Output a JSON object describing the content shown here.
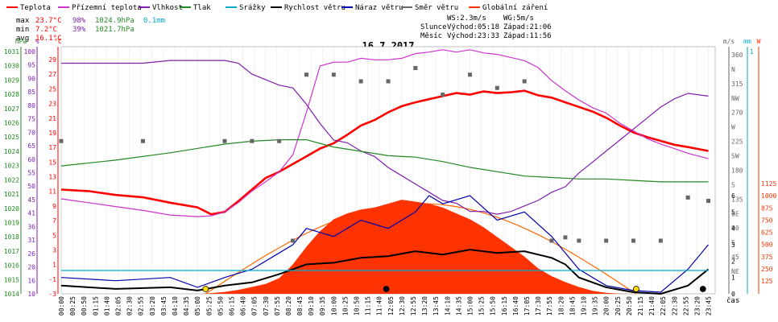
{
  "legend": [
    {
      "label": "Teplota",
      "color": "#ff0000"
    },
    {
      "label": "Přízemní teplota",
      "color": "#cc33cc"
    },
    {
      "label": "Vlhkost",
      "color": "#7f1fae"
    },
    {
      "label": "Tlak",
      "color": "#228822"
    },
    {
      "label": "Srážky",
      "color": "#00aacc"
    },
    {
      "label": "Rychlost větru",
      "color": "#000000"
    },
    {
      "label": "Náraz větru",
      "color": "#0000aa"
    },
    {
      "label": "Směr větru",
      "color": "#666666"
    },
    {
      "label": "Globální záření",
      "color": "#ff3300"
    }
  ],
  "stats": {
    "max": {
      "label": "max",
      "temp": "23.7°C",
      "hum": "98%",
      "press": "1024.9hPa",
      "rain": "0.1mm"
    },
    "min": {
      "label": "min",
      "temp": "7.2°C",
      "hum": "39%",
      "press": "1021.7hPa"
    },
    "avg": {
      "label": "avg",
      "temp": "16.1°C"
    }
  },
  "info": {
    "ws": "WS:2.3m/s",
    "wg": "WG:5m/s",
    "sun_label": "Slunce",
    "sunrise": "Východ:05:18",
    "sunset": "Západ:21:06",
    "moon_label": "Měsíc",
    "moonrise": "Východ:23:33",
    "moonset": "Západ:11:56"
  },
  "chart_data": {
    "type": "line",
    "title": "16.7.2017",
    "x_label": "čas",
    "x_ticks": [
      "00:00",
      "00:25",
      "00:50",
      "01:15",
      "01:40",
      "02:05",
      "02:30",
      "02:55",
      "03:20",
      "03:45",
      "04:10",
      "04:35",
      "05:00",
      "05:25",
      "05:50",
      "06:15",
      "06:40",
      "07:05",
      "07:30",
      "07:55",
      "08:20",
      "08:45",
      "09:10",
      "09:35",
      "10:00",
      "10:25",
      "10:50",
      "11:15",
      "11:40",
      "12:05",
      "12:30",
      "12:55",
      "13:20",
      "13:45",
      "14:10",
      "14:35",
      "15:00",
      "15:25",
      "15:50",
      "16:15",
      "16:40",
      "17:05",
      "17:30",
      "17:55",
      "18:20",
      "18:45",
      "19:10",
      "19:35",
      "20:00",
      "20:25",
      "20:50",
      "21:15",
      "21:40",
      "22:05",
      "22:30",
      "22:55",
      "23:20",
      "23:45"
    ],
    "axes": {
      "hpa": {
        "label": "hPa",
        "ticks": [
          1031,
          1030,
          1029,
          1028,
          1027,
          1026,
          1025,
          1024,
          1023,
          1022,
          1021,
          1020,
          1019,
          1018,
          1017,
          1016,
          1015,
          1014
        ],
        "color": "#228822"
      },
      "pct": {
        "label": "%",
        "ticks": [
          100,
          95,
          90,
          85,
          80,
          75,
          70,
          65,
          60,
          55,
          50,
          45,
          41,
          36,
          31,
          26,
          20,
          16,
          10
        ],
        "color": "#7f1fae"
      },
      "temp": {
        "label": "°C",
        "ticks": [
          29,
          27,
          25,
          23,
          21,
          19,
          17,
          15,
          13,
          11,
          9,
          7,
          5,
          3,
          1,
          -1,
          -3
        ],
        "color": "#ff0000"
      },
      "dir": {
        "label": "m/s",
        "ticks": [
          "360",
          "N",
          "315",
          "NW",
          "270",
          "W",
          "225",
          "SW",
          "180",
          "S",
          "135",
          "SE",
          "90",
          "E",
          "45",
          "NE"
        ],
        "color": "#666666"
      },
      "wind": {
        "ticks": [
          6,
          5,
          4,
          3,
          2,
          1,
          0
        ],
        "color": "#000000"
      },
      "rain": {
        "label": "mm",
        "ticks": [
          "1"
        ],
        "color": "#00aacc"
      },
      "rad": {
        "label": "W",
        "ticks": [
          1125,
          1000,
          875,
          750,
          625,
          500,
          375,
          250,
          125
        ],
        "color": "#ff3300"
      }
    },
    "series": [
      {
        "name": "Teplota",
        "color": "#ff0000",
        "x": [
          0,
          1,
          2,
          3,
          4,
          5,
          5.5,
          6,
          6.5,
          7,
          7.5,
          8,
          8.5,
          9,
          9.5,
          10,
          10.5,
          11,
          11.5,
          12,
          12.5,
          13,
          13.5,
          14,
          14.5,
          15,
          15.5,
          16,
          16.5,
          17,
          17.5,
          18,
          18.5,
          19,
          19.5,
          20,
          20.5,
          21,
          21.5,
          22,
          22.5,
          23,
          23.75
        ],
        "y": [
          10.5,
          10.3,
          9.8,
          9.5,
          8.8,
          8.2,
          7.3,
          7.6,
          9,
          10.5,
          12,
          12.8,
          13.8,
          14.8,
          15.8,
          16.5,
          17.6,
          18.8,
          19.5,
          20.5,
          21.3,
          21.8,
          22.2,
          22.6,
          23,
          22.8,
          23.2,
          23,
          23.1,
          23.3,
          22.7,
          22.4,
          21.8,
          21.2,
          20.6,
          19.8,
          18.8,
          17.9,
          17.3,
          16.8,
          16.3,
          16,
          15.5
        ]
      },
      {
        "name": "Přízemní teplota",
        "color": "#cc33cc",
        "x": [
          0,
          1,
          2,
          3,
          4,
          5,
          5.5,
          6,
          6.5,
          7,
          7.5,
          8,
          8.5,
          9,
          9.5,
          10,
          10.5,
          11,
          11.5,
          12,
          12.5,
          13,
          13.5,
          14,
          14.5,
          15,
          15.5,
          16,
          16.5,
          17,
          17.5,
          18,
          18.5,
          19,
          19.5,
          20,
          20.5,
          21,
          21.5,
          22,
          22.5,
          23,
          23.75
        ],
        "y": [
          9.3,
          8.8,
          8.3,
          7.8,
          7.2,
          7,
          7.1,
          7.6,
          8.8,
          10.3,
          11.5,
          12.8,
          15,
          20.5,
          26.5,
          27,
          27,
          27.5,
          27.3,
          27.3,
          27.5,
          28.1,
          28.3,
          28.6,
          28.3,
          28.6,
          28.2,
          28,
          27.6,
          27.2,
          26.3,
          24.6,
          23.3,
          22.1,
          21.1,
          20.4,
          19.1,
          18.1,
          17.1,
          16.4,
          15.8,
          15.2,
          14.5
        ]
      },
      {
        "name": "Vlhkost",
        "color": "#7f1fae",
        "x": [
          0,
          1,
          2,
          3,
          4,
          5,
          5.5,
          6,
          6.5,
          7,
          7.5,
          8,
          8.5,
          9,
          9.5,
          10,
          10.5,
          11,
          11.5,
          12,
          12.5,
          13,
          13.5,
          14,
          14.5,
          15,
          15.5,
          16,
          16.5,
          17,
          17.5,
          18,
          18.5,
          19,
          19.5,
          20,
          20.5,
          21,
          21.5,
          22,
          22.5,
          23,
          23.75
        ],
        "y": [
          94,
          94,
          94,
          94,
          95,
          95,
          95,
          95,
          94,
          90,
          88,
          86,
          85,
          79,
          72,
          66,
          65,
          62,
          60,
          56,
          53,
          50,
          47,
          44,
          43,
          40,
          40,
          39,
          40,
          42,
          44,
          47,
          49,
          54,
          58,
          62,
          66,
          70,
          74,
          78,
          81,
          83,
          82
        ]
      },
      {
        "name": "Tlak",
        "color": "#228822",
        "x": [
          0,
          2,
          4,
          6,
          7,
          8,
          9,
          10,
          11,
          12,
          13,
          14,
          15,
          16,
          17,
          18,
          19,
          20,
          21,
          22,
          23,
          23.75
        ],
        "y": [
          1022.8,
          1023.2,
          1023.7,
          1024.3,
          1024.5,
          1024.6,
          1024.6,
          1024.1,
          1023.8,
          1023.5,
          1023.4,
          1023.1,
          1022.7,
          1022.4,
          1022.1,
          1022,
          1021.9,
          1021.9,
          1021.8,
          1021.7,
          1021.7,
          1021.7
        ]
      },
      {
        "name": "Globální záření",
        "color": "#ff3300",
        "x": [
          5.2,
          6,
          6.5,
          7,
          7.5,
          8,
          8.5,
          9,
          9.5,
          10,
          10.5,
          11,
          11.5,
          12,
          12.5,
          13,
          13.5,
          14,
          14.5,
          15,
          15.5,
          16,
          16.5,
          17,
          17.5,
          18,
          18.5,
          19,
          19.5,
          20,
          20.5,
          21
        ],
        "y": [
          0,
          20,
          40,
          70,
          100,
          160,
          300,
          480,
          640,
          760,
          820,
          860,
          880,
          920,
          960,
          940,
          920,
          880,
          820,
          760,
          680,
          580,
          480,
          380,
          260,
          180,
          120,
          70,
          30,
          10,
          2,
          0
        ]
      },
      {
        "name": "Rychlost větru",
        "color": "#000000",
        "x": [
          0,
          2,
          4,
          5,
          6,
          7,
          8,
          8.5,
          9,
          10,
          11,
          12,
          13,
          14,
          15,
          16,
          17,
          18,
          18.5,
          19,
          20,
          21,
          22,
          23,
          23.75
        ],
        "y": [
          0.5,
          0.3,
          0.4,
          0.2,
          0.5,
          0.7,
          1.2,
          1.5,
          1.8,
          1.9,
          2.2,
          2.3,
          2.6,
          2.4,
          2.7,
          2.5,
          2.6,
          2.2,
          1.8,
          1,
          0.4,
          0.1,
          0,
          0.5,
          1.5
        ]
      },
      {
        "name": "Náraz větru",
        "color": "#0000aa",
        "x": [
          0,
          2,
          4,
          5,
          6,
          7,
          8,
          8.5,
          9,
          10,
          11,
          12,
          13,
          13.5,
          14,
          15,
          16,
          17,
          18,
          18.5,
          19,
          20,
          21,
          22,
          23,
          23.75
        ],
        "y": [
          1,
          0.8,
          1,
          0.4,
          1,
          1.5,
          2.5,
          3,
          4,
          3.5,
          4.5,
          4,
          5,
          6,
          5.5,
          6,
          4.5,
          5,
          3.5,
          2.5,
          1.5,
          0.5,
          0.2,
          0.1,
          1.5,
          3
        ]
      },
      {
        "name": "Směr větru",
        "color": "#666666",
        "x": [
          0,
          3,
          6,
          7,
          8,
          8.5,
          9,
          10,
          11,
          12,
          13,
          14,
          15,
          16,
          17,
          18,
          18.5,
          19,
          20,
          21,
          22,
          23,
          23.75
        ],
        "y": [
          230,
          230,
          230,
          230,
          230,
          80,
          330,
          330,
          320,
          320,
          340,
          300,
          330,
          310,
          320,
          80,
          85,
          80,
          80,
          80,
          80,
          145,
          140
        ]
      },
      {
        "name": "Srážky",
        "color": "#00aacc",
        "x": [
          0,
          23.75
        ],
        "y": [
          0.1,
          0.1
        ]
      }
    ],
    "clearsky_radiation": {
      "color": "#ff6600",
      "peak": 920,
      "start": 5.3,
      "end": 21.1
    }
  }
}
